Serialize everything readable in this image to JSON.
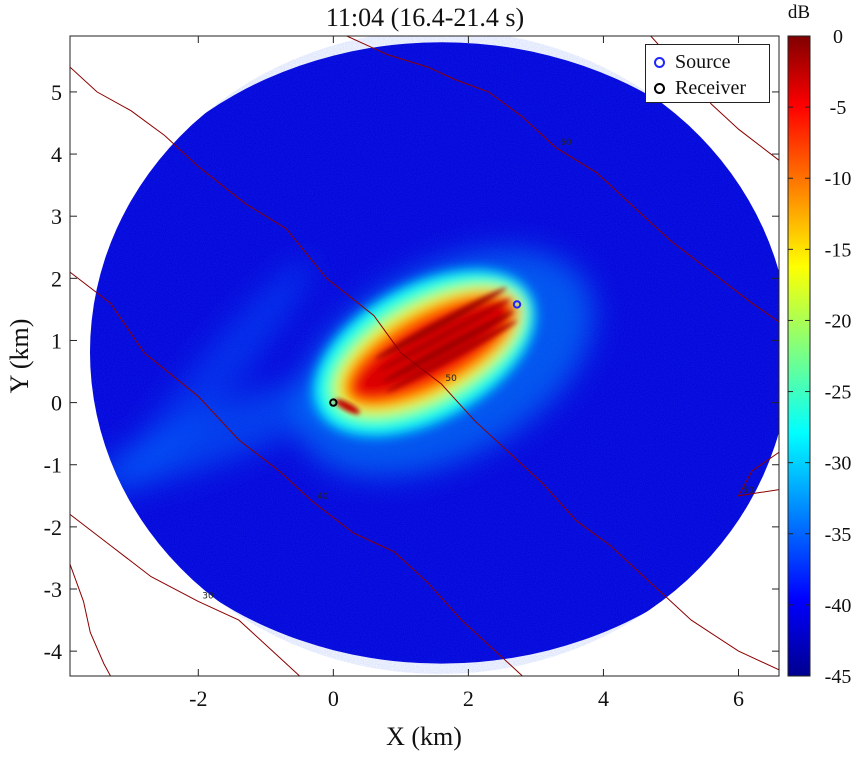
{
  "chart_data": {
    "type": "heatmap",
    "title": "11:04 (16.4-21.4 s)",
    "xlabel": "X (km)",
    "ylabel": "Y (km)",
    "xlim": [
      -3.9,
      6.6
    ],
    "ylim": [
      -4.4,
      5.9
    ],
    "xticks": [
      -2,
      0,
      2,
      4,
      6
    ],
    "yticks": [
      -4,
      -3,
      -2,
      -1,
      0,
      1,
      2,
      3,
      4,
      5
    ],
    "xtick_labels": [
      "-2",
      "0",
      "2",
      "4",
      "6"
    ],
    "ytick_labels": [
      "-4",
      "-3",
      "-2",
      "-1",
      "0",
      "1",
      "2",
      "3",
      "4",
      "5"
    ],
    "colorbar": {
      "label": "dB",
      "range": [
        -45,
        0
      ],
      "ticks": [
        0,
        -5,
        -10,
        -15,
        -20,
        -25,
        -30,
        -35,
        -40,
        -45
      ],
      "tick_labels": [
        "0",
        "-5",
        "-10",
        "-15",
        "-20",
        "-25",
        "-30",
        "-35",
        "-40",
        "-45"
      ],
      "colormap": "jet"
    },
    "field": {
      "shape": "ellipse",
      "center": [
        1.6,
        0.8
      ],
      "semi_axes_km": [
        5.5,
        5.0
      ],
      "background_level_db": -41,
      "main_lobe": {
        "from": [
          0,
          0
        ],
        "to": [
          2.7,
          1.6
        ],
        "peak_db": -2,
        "edge_db": -25
      }
    },
    "legend": {
      "position": "top-right",
      "entries": [
        {
          "label": "Source",
          "marker": "o",
          "color": "#1f25ff"
        },
        {
          "label": "Receiver",
          "marker": "o",
          "color": "#000000"
        }
      ]
    },
    "points": [
      {
        "name": "Source",
        "x": 2.72,
        "y": 1.58
      },
      {
        "name": "Receiver",
        "x": 0.0,
        "y": 0.0
      }
    ],
    "contours": [
      {
        "level_label": "50",
        "points": [
          [
            -3.9,
            5.4
          ],
          [
            -3.5,
            5.0
          ],
          [
            -3.0,
            4.7
          ],
          [
            -2.5,
            4.3
          ],
          [
            -2.0,
            3.8
          ],
          [
            -1.3,
            3.2
          ],
          [
            -0.7,
            2.8
          ],
          [
            -0.1,
            2.0
          ],
          [
            0.6,
            1.4
          ],
          [
            1.0,
            0.8
          ],
          [
            1.6,
            0.3
          ],
          [
            2.1,
            -0.3
          ],
          [
            2.6,
            -0.8
          ],
          [
            3.1,
            -1.3
          ],
          [
            3.6,
            -1.9
          ],
          [
            4.1,
            -2.3
          ],
          [
            4.7,
            -2.9
          ],
          [
            5.3,
            -3.5
          ],
          [
            6.0,
            -4.0
          ],
          [
            6.6,
            -4.3
          ]
        ]
      },
      {
        "level_label": "40",
        "points": [
          [
            -3.9,
            2.1
          ],
          [
            -3.3,
            1.6
          ],
          [
            -2.8,
            0.8
          ],
          [
            -2.0,
            0.1
          ],
          [
            -1.4,
            -0.6
          ],
          [
            -0.8,
            -1.1
          ],
          [
            -0.3,
            -1.6
          ],
          [
            0.3,
            -2.1
          ],
          [
            0.9,
            -2.4
          ],
          [
            1.4,
            -2.9
          ],
          [
            1.9,
            -3.5
          ],
          [
            2.4,
            -4.0
          ],
          [
            2.8,
            -4.4
          ]
        ]
      },
      {
        "level_label": "30",
        "points": [
          [
            -3.9,
            -1.8
          ],
          [
            -3.3,
            -2.3
          ],
          [
            -2.7,
            -2.8
          ],
          [
            -2.0,
            -3.2
          ],
          [
            -1.4,
            -3.5
          ],
          [
            -0.9,
            -4.0
          ],
          [
            -0.5,
            -4.4
          ]
        ]
      },
      {
        "level_label": "60",
        "points": [
          [
            0.2,
            5.9
          ],
          [
            0.8,
            5.6
          ],
          [
            1.4,
            5.4
          ],
          [
            1.8,
            5.2
          ],
          [
            2.3,
            5.0
          ],
          [
            2.8,
            4.6
          ],
          [
            3.3,
            4.1
          ],
          [
            3.9,
            3.7
          ],
          [
            4.4,
            3.2
          ],
          [
            5.0,
            2.6
          ],
          [
            5.6,
            2.1
          ],
          [
            6.2,
            1.6
          ],
          [
            6.6,
            1.3
          ]
        ]
      },
      {
        "level_label": "70",
        "points": [
          [
            4.7,
            5.9
          ],
          [
            5.2,
            5.3
          ],
          [
            5.6,
            4.8
          ],
          [
            6.0,
            4.4
          ],
          [
            6.6,
            3.9
          ]
        ]
      },
      {
        "level_label": "",
        "points": [
          [
            -3.9,
            -2.6
          ],
          [
            -3.7,
            -3.2
          ],
          [
            -3.6,
            -3.7
          ],
          [
            -3.4,
            -4.2
          ],
          [
            -3.3,
            -4.4
          ]
        ]
      },
      {
        "level_label": "50",
        "points": [
          [
            6.6,
            -0.8
          ],
          [
            6.2,
            -1.1
          ],
          [
            6.0,
            -1.5
          ],
          [
            6.6,
            -1.4
          ]
        ]
      }
    ]
  }
}
